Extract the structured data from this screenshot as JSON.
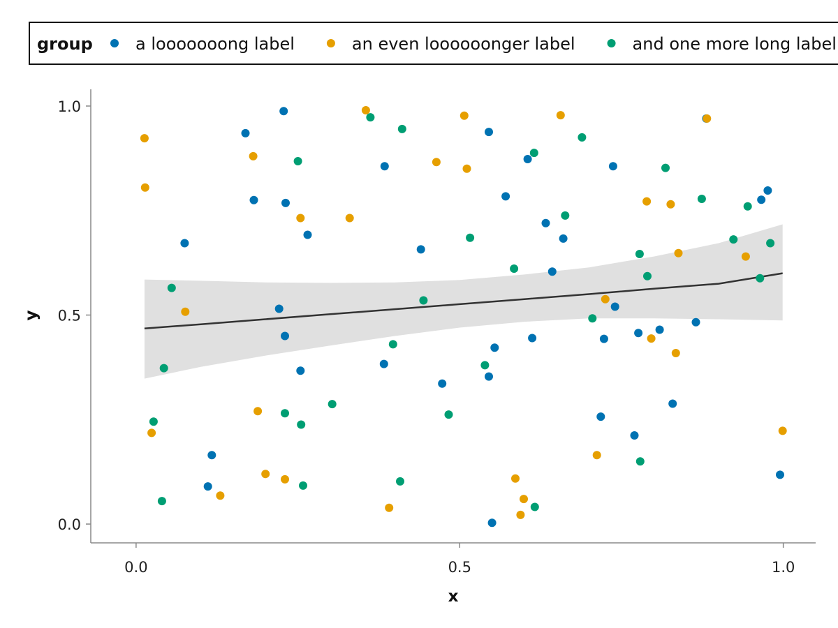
{
  "chart_data": {
    "type": "scatter",
    "xlabel": "x",
    "ylabel": "y",
    "xlim": [
      -0.07,
      1.05
    ],
    "ylim": [
      -0.045,
      1.04
    ],
    "x_ticks": [
      {
        "value": 0.0,
        "label": "0.0"
      },
      {
        "value": 0.5,
        "label": "0.5"
      },
      {
        "value": 1.0,
        "label": "1.0"
      }
    ],
    "y_ticks": [
      {
        "value": 0.0,
        "label": "0.0"
      },
      {
        "value": 0.5,
        "label": "0.5"
      },
      {
        "value": 1.0,
        "label": "1.0"
      }
    ],
    "grid": false,
    "legend": {
      "title": "group",
      "placement": "top"
    },
    "series": [
      {
        "name": "a looooooong label",
        "color": "#0072b2",
        "points": [
          [
            0.228,
            0.988
          ],
          [
            0.169,
            0.935
          ],
          [
            0.545,
            0.938
          ],
          [
            0.881,
            0.97
          ],
          [
            0.384,
            0.856
          ],
          [
            0.605,
            0.873
          ],
          [
            0.737,
            0.856
          ],
          [
            0.182,
            0.775
          ],
          [
            0.231,
            0.768
          ],
          [
            0.571,
            0.784
          ],
          [
            0.966,
            0.776
          ],
          [
            0.976,
            0.798
          ],
          [
            0.633,
            0.72
          ],
          [
            0.265,
            0.692
          ],
          [
            0.075,
            0.672
          ],
          [
            0.44,
            0.657
          ],
          [
            0.66,
            0.683
          ],
          [
            0.643,
            0.604
          ],
          [
            0.221,
            0.515
          ],
          [
            0.74,
            0.52
          ],
          [
            0.23,
            0.45
          ],
          [
            0.612,
            0.445
          ],
          [
            0.723,
            0.443
          ],
          [
            0.865,
            0.483
          ],
          [
            0.554,
            0.422
          ],
          [
            0.776,
            0.457
          ],
          [
            0.809,
            0.465
          ],
          [
            0.383,
            0.383
          ],
          [
            0.254,
            0.367
          ],
          [
            0.473,
            0.336
          ],
          [
            0.545,
            0.353
          ],
          [
            0.718,
            0.257
          ],
          [
            0.829,
            0.288
          ],
          [
            0.77,
            0.212
          ],
          [
            0.117,
            0.165
          ],
          [
            0.111,
            0.09
          ],
          [
            0.55,
            0.003
          ],
          [
            0.995,
            0.118
          ]
        ]
      },
      {
        "name": "an even loooooonger label",
        "color": "#e69f00",
        "points": [
          [
            0.355,
            0.99
          ],
          [
            0.507,
            0.977
          ],
          [
            0.656,
            0.978
          ],
          [
            0.882,
            0.97
          ],
          [
            0.013,
            0.923
          ],
          [
            0.181,
            0.88
          ],
          [
            0.464,
            0.866
          ],
          [
            0.511,
            0.85
          ],
          [
            0.014,
            0.805
          ],
          [
            0.789,
            0.772
          ],
          [
            0.826,
            0.765
          ],
          [
            0.254,
            0.732
          ],
          [
            0.33,
            0.732
          ],
          [
            0.838,
            0.648
          ],
          [
            0.942,
            0.64
          ],
          [
            0.076,
            0.508
          ],
          [
            0.725,
            0.538
          ],
          [
            0.796,
            0.444
          ],
          [
            0.834,
            0.409
          ],
          [
            0.188,
            0.27
          ],
          [
            0.024,
            0.218
          ],
          [
            0.999,
            0.223
          ],
          [
            0.2,
            0.12
          ],
          [
            0.23,
            0.107
          ],
          [
            0.13,
            0.068
          ],
          [
            0.586,
            0.109
          ],
          [
            0.712,
            0.165
          ],
          [
            0.599,
            0.06
          ],
          [
            0.391,
            0.039
          ],
          [
            0.594,
            0.022
          ]
        ]
      },
      {
        "name": "and one more long label",
        "color": "#009e73",
        "points": [
          [
            0.362,
            0.973
          ],
          [
            0.411,
            0.945
          ],
          [
            0.689,
            0.925
          ],
          [
            0.615,
            0.888
          ],
          [
            0.25,
            0.868
          ],
          [
            0.818,
            0.852
          ],
          [
            0.874,
            0.778
          ],
          [
            0.945,
            0.76
          ],
          [
            0.663,
            0.738
          ],
          [
            0.516,
            0.685
          ],
          [
            0.923,
            0.681
          ],
          [
            0.98,
            0.672
          ],
          [
            0.778,
            0.646
          ],
          [
            0.584,
            0.611
          ],
          [
            0.79,
            0.593
          ],
          [
            0.964,
            0.588
          ],
          [
            0.055,
            0.565
          ],
          [
            0.444,
            0.535
          ],
          [
            0.705,
            0.492
          ],
          [
            0.397,
            0.43
          ],
          [
            0.043,
            0.373
          ],
          [
            0.539,
            0.38
          ],
          [
            0.303,
            0.287
          ],
          [
            0.23,
            0.265
          ],
          [
            0.483,
            0.262
          ],
          [
            0.255,
            0.238
          ],
          [
            0.027,
            0.245
          ],
          [
            0.779,
            0.15
          ],
          [
            0.408,
            0.102
          ],
          [
            0.258,
            0.092
          ],
          [
            0.04,
            0.055
          ],
          [
            0.616,
            0.041
          ]
        ]
      }
    ],
    "trend": {
      "type": "linear",
      "color": "#333333",
      "band_color": "#e0e0e0",
      "points": [
        [
          0.013,
          0.468
        ],
        [
          0.1,
          0.478
        ],
        [
          0.2,
          0.49
        ],
        [
          0.3,
          0.502
        ],
        [
          0.4,
          0.514
        ],
        [
          0.5,
          0.526
        ],
        [
          0.6,
          0.538
        ],
        [
          0.7,
          0.55
        ],
        [
          0.8,
          0.563
        ],
        [
          0.9,
          0.575
        ],
        [
          0.999,
          0.6
        ]
      ],
      "upper": [
        [
          0.013,
          0.585
        ],
        [
          0.1,
          0.582
        ],
        [
          0.2,
          0.578
        ],
        [
          0.3,
          0.577
        ],
        [
          0.4,
          0.578
        ],
        [
          0.5,
          0.584
        ],
        [
          0.6,
          0.597
        ],
        [
          0.7,
          0.614
        ],
        [
          0.8,
          0.64
        ],
        [
          0.9,
          0.672
        ],
        [
          0.999,
          0.717
        ]
      ],
      "lower": [
        [
          0.013,
          0.348
        ],
        [
          0.1,
          0.376
        ],
        [
          0.2,
          0.403
        ],
        [
          0.3,
          0.427
        ],
        [
          0.4,
          0.45
        ],
        [
          0.5,
          0.47
        ],
        [
          0.6,
          0.484
        ],
        [
          0.7,
          0.492
        ],
        [
          0.8,
          0.492
        ],
        [
          0.9,
          0.49
        ],
        [
          0.999,
          0.487
        ]
      ]
    }
  }
}
